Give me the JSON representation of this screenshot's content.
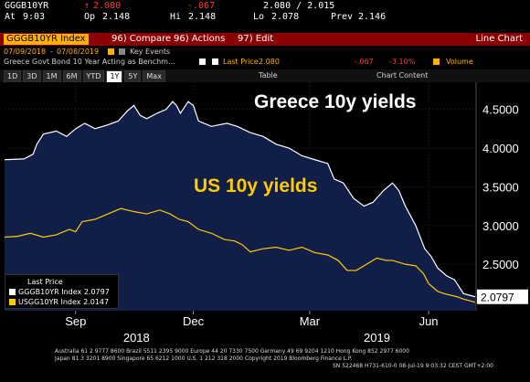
{
  "ticker_bar": {
    "ticker": "GGGB10YR",
    "arrow": "↑",
    "last": "2.080",
    "change": "-.067",
    "bid_ask": "2.080 / 2.015",
    "time_label": "At",
    "time": "9:03",
    "open_label": "Op",
    "open": "2.148",
    "high_label": "Hi",
    "high": "2.148",
    "low_label": "Lo",
    "low": "2.078",
    "prev_label": "Prev",
    "prev": "2.146"
  },
  "toolbar": {
    "security": "GGGB10YR Index",
    "compare_label": "96) Compare",
    "actions_label": "96) Actions",
    "edit_label": "97) Edit",
    "view_title": "Line Chart"
  },
  "date_row": {
    "start": "07/09/2018",
    "end": "07/08/2019",
    "key_events": "Key Events"
  },
  "desc_row": {
    "description": "Greece Govt Bond 10 Year Acting as Benchm...",
    "last_price_label": "Last Price",
    "last_price": "2.080",
    "change": "-.067",
    "pct_change": "-3.10%",
    "volume_label": "Volume"
  },
  "range_buttons": [
    "1D",
    "3D",
    "1M",
    "6M",
    "YTD",
    "1Y",
    "5Y",
    "Max"
  ],
  "range_selected": "1Y",
  "table_label": "Table",
  "chart_content_label": "Chart Content",
  "chart_data": {
    "type": "area",
    "ylim": [
      1.9,
      4.85
    ],
    "y_ticks": [
      "4.5000",
      "4.0000",
      "3.5000",
      "3.0000",
      "2.5000"
    ],
    "y_tick_values": [
      4.5,
      4.0,
      3.5,
      3.0,
      2.5
    ],
    "x_tick_labels": [
      "Sep",
      "Dec",
      "Mar",
      "Jun"
    ],
    "year_labels": [
      "2018",
      "2019"
    ],
    "x_tick_days": [
      55,
      146,
      236,
      328
    ],
    "year_label_days": [
      102,
      288
    ],
    "x_range_days": [
      0,
      364
    ],
    "series": [
      {
        "name": "GGGB10YR Index",
        "color": "#ffffff",
        "fill": "#101e48",
        "last_value": "2.0797",
        "annotation": "Greece 10y yields",
        "points": [
          [
            0,
            3.85
          ],
          [
            15,
            3.86
          ],
          [
            22,
            3.92
          ],
          [
            25,
            4.05
          ],
          [
            30,
            4.18
          ],
          [
            40,
            4.22
          ],
          [
            48,
            4.15
          ],
          [
            55,
            4.25
          ],
          [
            62,
            4.32
          ],
          [
            70,
            4.25
          ],
          [
            80,
            4.3
          ],
          [
            88,
            4.35
          ],
          [
            95,
            4.48
          ],
          [
            100,
            4.55
          ],
          [
            105,
            4.42
          ],
          [
            110,
            4.38
          ],
          [
            118,
            4.45
          ],
          [
            125,
            4.5
          ],
          [
            130,
            4.6
          ],
          [
            133,
            4.55
          ],
          [
            136,
            4.45
          ],
          [
            142,
            4.6
          ],
          [
            146,
            4.55
          ],
          [
            150,
            4.35
          ],
          [
            160,
            4.28
          ],
          [
            172,
            4.32
          ],
          [
            180,
            4.28
          ],
          [
            190,
            4.2
          ],
          [
            200,
            4.15
          ],
          [
            210,
            4.05
          ],
          [
            220,
            4.0
          ],
          [
            230,
            3.9
          ],
          [
            240,
            3.85
          ],
          [
            250,
            3.8
          ],
          [
            255,
            3.6
          ],
          [
            262,
            3.55
          ],
          [
            270,
            3.35
          ],
          [
            278,
            3.25
          ],
          [
            285,
            3.3
          ],
          [
            293,
            3.45
          ],
          [
            300,
            3.55
          ],
          [
            305,
            3.45
          ],
          [
            310,
            3.25
          ],
          [
            318,
            3.0
          ],
          [
            325,
            2.7
          ],
          [
            330,
            2.6
          ],
          [
            335,
            2.45
          ],
          [
            342,
            2.35
          ],
          [
            348,
            2.3
          ],
          [
            355,
            2.12
          ],
          [
            364,
            2.08
          ]
        ]
      },
      {
        "name": "USGG10YR Index",
        "color": "#ffcc00",
        "last_value": "2.0147",
        "annotation": "US 10y yields",
        "points": [
          [
            0,
            2.85
          ],
          [
            10,
            2.86
          ],
          [
            20,
            2.9
          ],
          [
            30,
            2.85
          ],
          [
            40,
            2.88
          ],
          [
            50,
            2.95
          ],
          [
            55,
            2.92
          ],
          [
            60,
            3.05
          ],
          [
            70,
            3.08
          ],
          [
            80,
            3.15
          ],
          [
            90,
            3.22
          ],
          [
            95,
            3.2
          ],
          [
            100,
            3.18
          ],
          [
            110,
            3.15
          ],
          [
            120,
            3.2
          ],
          [
            128,
            3.15
          ],
          [
            135,
            3.08
          ],
          [
            142,
            3.05
          ],
          [
            150,
            2.95
          ],
          [
            160,
            2.9
          ],
          [
            170,
            2.82
          ],
          [
            178,
            2.8
          ],
          [
            184,
            2.75
          ],
          [
            190,
            2.66
          ],
          [
            200,
            2.7
          ],
          [
            210,
            2.72
          ],
          [
            220,
            2.68
          ],
          [
            230,
            2.72
          ],
          [
            240,
            2.65
          ],
          [
            250,
            2.62
          ],
          [
            258,
            2.55
          ],
          [
            265,
            2.42
          ],
          [
            272,
            2.42
          ],
          [
            280,
            2.5
          ],
          [
            288,
            2.58
          ],
          [
            295,
            2.55
          ],
          [
            300,
            2.55
          ],
          [
            310,
            2.5
          ],
          [
            318,
            2.48
          ],
          [
            324,
            2.38
          ],
          [
            328,
            2.25
          ],
          [
            335,
            2.15
          ],
          [
            340,
            2.12
          ],
          [
            350,
            2.08
          ],
          [
            355,
            2.05
          ],
          [
            364,
            2.01
          ]
        ]
      }
    ]
  },
  "legend": {
    "title": "Last Price",
    "items": [
      {
        "label": "GGGB10YR Index",
        "value": "2.0797",
        "color": "#ffffff"
      },
      {
        "label": "USGG10YR Index",
        "value": "2.0147",
        "color": "#ffcc00"
      }
    ]
  },
  "footer": {
    "line1": "Australia 61 2 9777 8600 Brazil 5511 2395 9000 Europe 44 20 7330 7500 Germany 49 69 9204 1210 Hong Kong 852 2977 6000",
    "line2": "Japan 81 3 3201 8900          Singapore 65 6212 1000          U.S. 1 212 318 2000          Copyright 2019 Bloomberg Finance L.P.",
    "line3": "SN 522468 H731-610-0 08-Jul-19  9:03:32 CEST GMT+2:00"
  }
}
